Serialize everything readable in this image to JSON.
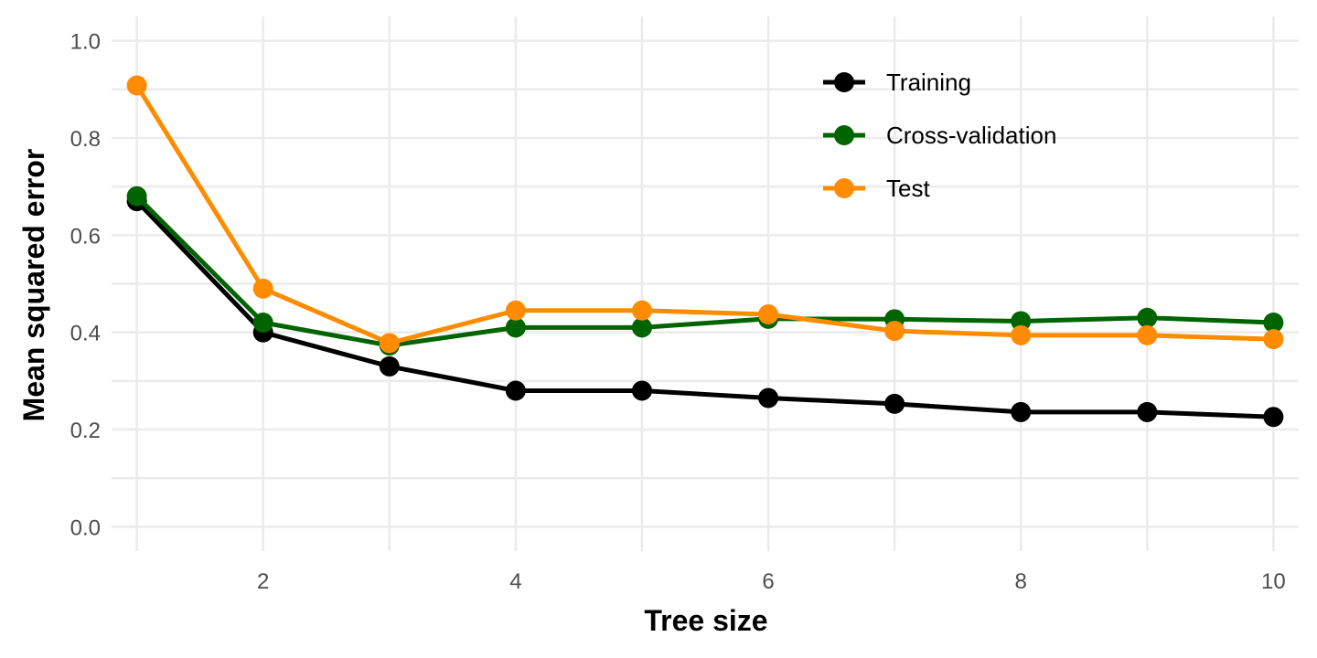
{
  "chart_data": {
    "type": "line",
    "xlabel": "Tree size",
    "ylabel": "Mean squared error",
    "xlim": [
      0.8,
      10.2
    ],
    "ylim": [
      -0.05,
      1.05
    ],
    "x_ticks": [
      2,
      4,
      6,
      8,
      10
    ],
    "x_tick_labels": [
      "2",
      "4",
      "6",
      "8",
      "10"
    ],
    "y_ticks": [
      0.0,
      0.2,
      0.4,
      0.6,
      0.8,
      1.0
    ],
    "y_tick_labels": [
      "0.0",
      "0.2",
      "0.4",
      "0.6",
      "0.8",
      "1.0"
    ],
    "x_minor_ticks": [
      1,
      3,
      5,
      7,
      9
    ],
    "y_minor_ticks": [
      0.1,
      0.3,
      0.5,
      0.7,
      0.9
    ],
    "grid": true,
    "legend_position": "top-right",
    "x": [
      1,
      2,
      3,
      4,
      5,
      6,
      7,
      8,
      9,
      10
    ],
    "series": [
      {
        "name": "Training",
        "color": "#000000",
        "values": [
          0.67,
          0.4,
          0.33,
          0.28,
          0.28,
          0.265,
          0.253,
          0.236,
          0.236,
          0.226
        ]
      },
      {
        "name": "Cross-validation",
        "color": "#006400",
        "values": [
          0.68,
          0.42,
          0.373,
          0.41,
          0.41,
          0.428,
          0.427,
          0.423,
          0.43,
          0.42
        ]
      },
      {
        "name": "Test",
        "color": "#FF8C00",
        "values": [
          0.908,
          0.49,
          0.378,
          0.445,
          0.445,
          0.437,
          0.403,
          0.394,
          0.394,
          0.386
        ]
      }
    ]
  }
}
